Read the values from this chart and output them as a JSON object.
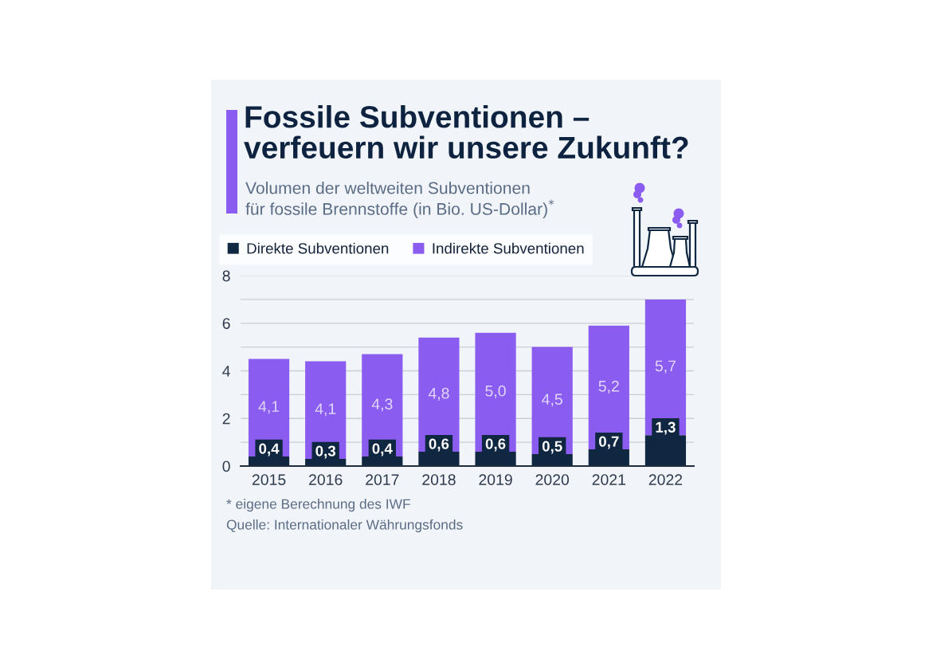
{
  "chart_data": {
    "type": "bar",
    "title": "Fossile Subventionen –\nverfeuern wir unsere Zukunft?",
    "subtitle": "Volumen der weltweiten Subventionen\nfür fossile Brennstoffe (in Bio. US-Dollar)$^{*}$",
    "categories": [
      "2015",
      "2016",
      "2017",
      "2018",
      "2019",
      "2020",
      "2021",
      "2022"
    ],
    "series": [
      {
        "name": "Direkte Subventionen",
        "color": "#0f2741",
        "values": [
          0.4,
          0.3,
          0.4,
          0.6,
          0.6,
          0.5,
          0.7,
          1.3
        ],
        "value_labels": [
          "0,4",
          "0,3",
          "0,4",
          "0,6",
          "0,6",
          "0,5",
          "0,7",
          "1,3"
        ]
      },
      {
        "name": "Indirekte Subventionen",
        "color": "#8b5cf0",
        "values": [
          4.1,
          4.1,
          4.3,
          4.8,
          5.0,
          4.5,
          5.2,
          5.7
        ],
        "value_labels": [
          "4,1",
          "4,1",
          "4,3",
          "4,8",
          "5,0",
          "4,5",
          "5,2",
          "5,7"
        ]
      }
    ],
    "stacked": true,
    "ylim": [
      0,
      8
    ],
    "yticks": [
      0,
      {
        "value": 1,
        "label": null
      },
      2,
      {
        "value": 3,
        "label": null
      },
      4,
      {
        "value": 5,
        "label": null
      },
      6,
      {
        "value": 7,
        "label": null
      },
      8
    ],
    "grid": "y",
    "legend": "top left",
    "annotations": [
      "* eigene Berechnung des IWF",
      "Quelle: Internationaler Währungsfonds"
    ]
  }
}
